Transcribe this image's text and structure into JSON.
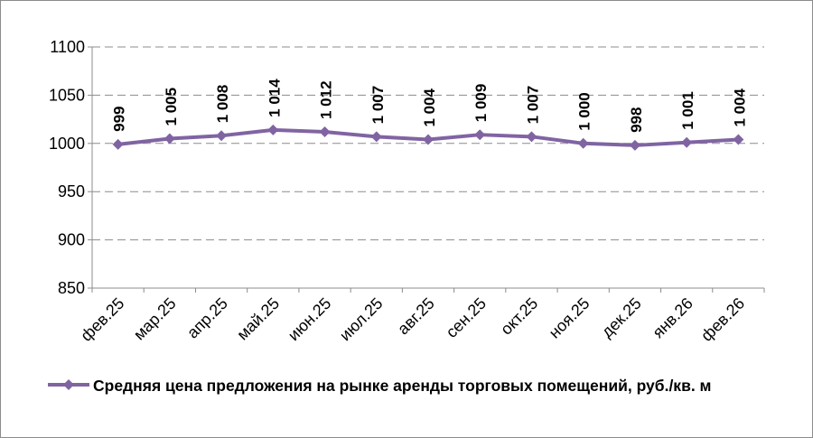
{
  "chart_data": {
    "type": "line",
    "categories": [
      "фев.25",
      "мар.25",
      "апр.25",
      "май.25",
      "июн.25",
      "июл.25",
      "авг.25",
      "сен.25",
      "окт.25",
      "ноя.25",
      "дек.25",
      "янв.26",
      "фев.26"
    ],
    "series": [
      {
        "name": "Средняя цена предложения на рынке аренды торговых помещений, руб./кв. м",
        "values": [
          999,
          1005,
          1008,
          1014,
          1012,
          1007,
          1004,
          1009,
          1007,
          1000,
          998,
          1001,
          1004
        ],
        "labels": [
          "999",
          "1 005",
          "1 008",
          "1 014",
          "1 012",
          "1 007",
          "1 004",
          "1 009",
          "1 007",
          "1 000",
          "998",
          "1 001",
          "1 004"
        ],
        "color": "#8064a2",
        "marker": "diamond"
      }
    ],
    "yticks": [
      "850",
      "900",
      "950",
      "1000",
      "1050",
      "1100"
    ],
    "ylim": [
      850,
      1100
    ],
    "grid": "horizontal-dashed",
    "legend_position": "bottom"
  }
}
